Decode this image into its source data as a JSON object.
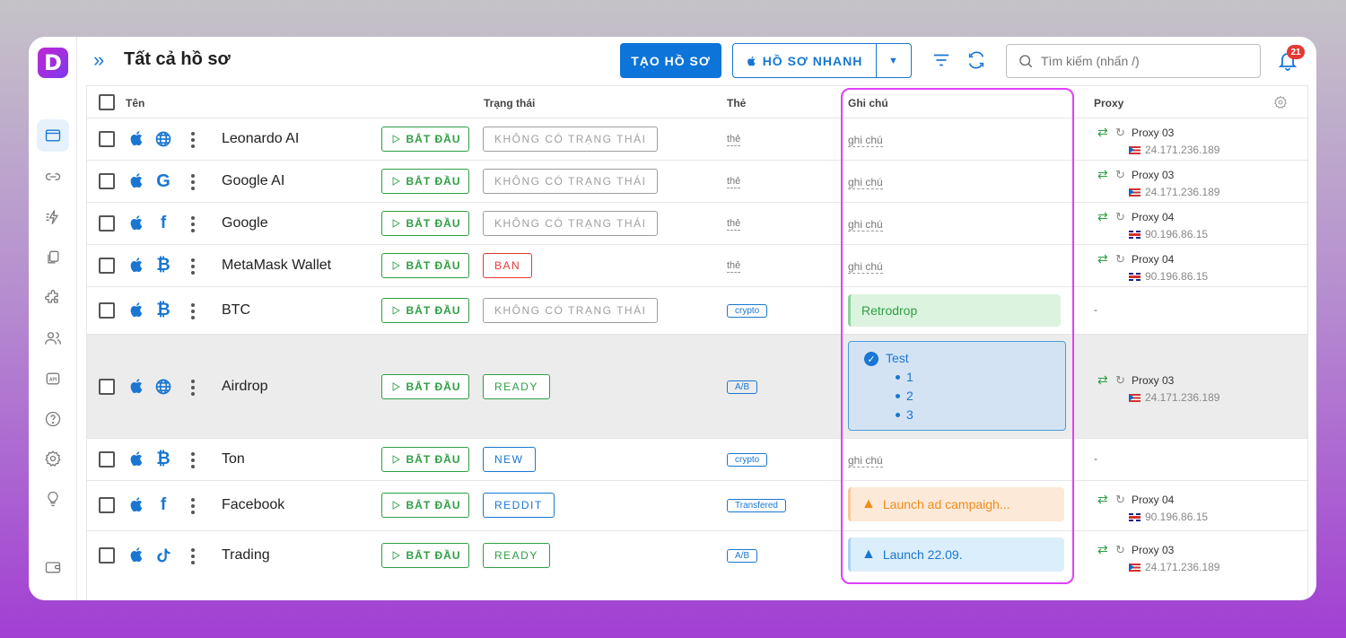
{
  "app": {
    "logo_letter": "D"
  },
  "header": {
    "title": "Tất cả hồ sơ",
    "create_label": "TẠO HỒ SƠ",
    "quick_label": "HỒ SƠ NHANH",
    "search_placeholder": "Tìm kiếm (nhấn /)",
    "notification_count": "21"
  },
  "table": {
    "columns": {
      "name": "Tên",
      "status": "Trạng thái",
      "tag": "Thẻ",
      "note": "Ghi chú",
      "proxy": "Proxy"
    },
    "start_label": "BẮT ĐẦU",
    "rows": [
      {
        "name": "Leonardo AI",
        "icon2": "globe-icon",
        "status": "KHÔNG CÓ TRẠNG THÁI",
        "status_color": "#9e9e9e",
        "tag": "thẻ",
        "note": "ghi chú",
        "proxy_name": "Proxy 03",
        "proxy_ip": "24.171.236.189",
        "flag": "puerto-rico-flag"
      },
      {
        "name": "Google AI",
        "icon2": "google-icon",
        "status": "KHÔNG CÓ TRẠNG THÁI",
        "status_color": "#9e9e9e",
        "tag": "thẻ",
        "note": "ghi chú",
        "proxy_name": "Proxy 03",
        "proxy_ip": "24.171.236.189",
        "flag": "puerto-rico-flag"
      },
      {
        "name": "Google",
        "icon2": "facebook-icon",
        "status": "KHÔNG CÓ TRẠNG THÁI",
        "status_color": "#9e9e9e",
        "tag": "thẻ",
        "note": "ghi chú",
        "proxy_name": "Proxy 04",
        "proxy_ip": "90.196.86.15",
        "flag": "uk-flag"
      },
      {
        "name": "MetaMask Wallet",
        "icon2": "bitcoin-icon",
        "status": "BAN",
        "status_color": "#e53935",
        "tag": "thẻ",
        "note": "ghi chú",
        "proxy_name": "Proxy 04",
        "proxy_ip": "90.196.86.15",
        "flag": "uk-flag"
      },
      {
        "name": "BTC",
        "icon2": "bitcoin-icon",
        "status": "KHÔNG CÓ TRẠNG THÁI",
        "status_color": "#9e9e9e",
        "tag": "crypto",
        "note": "Retrodrop",
        "proxy": "-"
      },
      {
        "name": "Airdrop",
        "icon2": "globe-icon",
        "status": "READY",
        "status_color": "#2e9e44",
        "tag": "A/B",
        "note_title": "Test",
        "note_items": [
          "1",
          "2",
          "3"
        ],
        "proxy_name": "Proxy 03",
        "proxy_ip": "24.171.236.189",
        "flag": "puerto-rico-flag"
      },
      {
        "name": "Ton",
        "icon2": "bitcoin-icon",
        "status": "NEW",
        "status_color": "#1976d2",
        "tag": "crypto",
        "note": "ghi chú",
        "proxy": "-"
      },
      {
        "name": "Facebook",
        "icon2": "facebook-icon",
        "status": "REDDIT",
        "status_color": "#1976d2",
        "tag": "Transfered",
        "note": "Launch ad campaigh...",
        "proxy_name": "Proxy 04",
        "proxy_ip": "90.196.86.15",
        "flag": "uk-flag"
      },
      {
        "name": "Trading",
        "icon2": "tiktok-icon",
        "status": "READY",
        "status_color": "#2e9e44",
        "tag": "A/B",
        "note": "Launch 22.09.",
        "proxy_name": "Proxy 03",
        "proxy_ip": "24.171.236.189",
        "flag": "puerto-rico-flag"
      }
    ]
  },
  "colors": {
    "accent": "#1976d2",
    "highlight": "#e040fb"
  }
}
